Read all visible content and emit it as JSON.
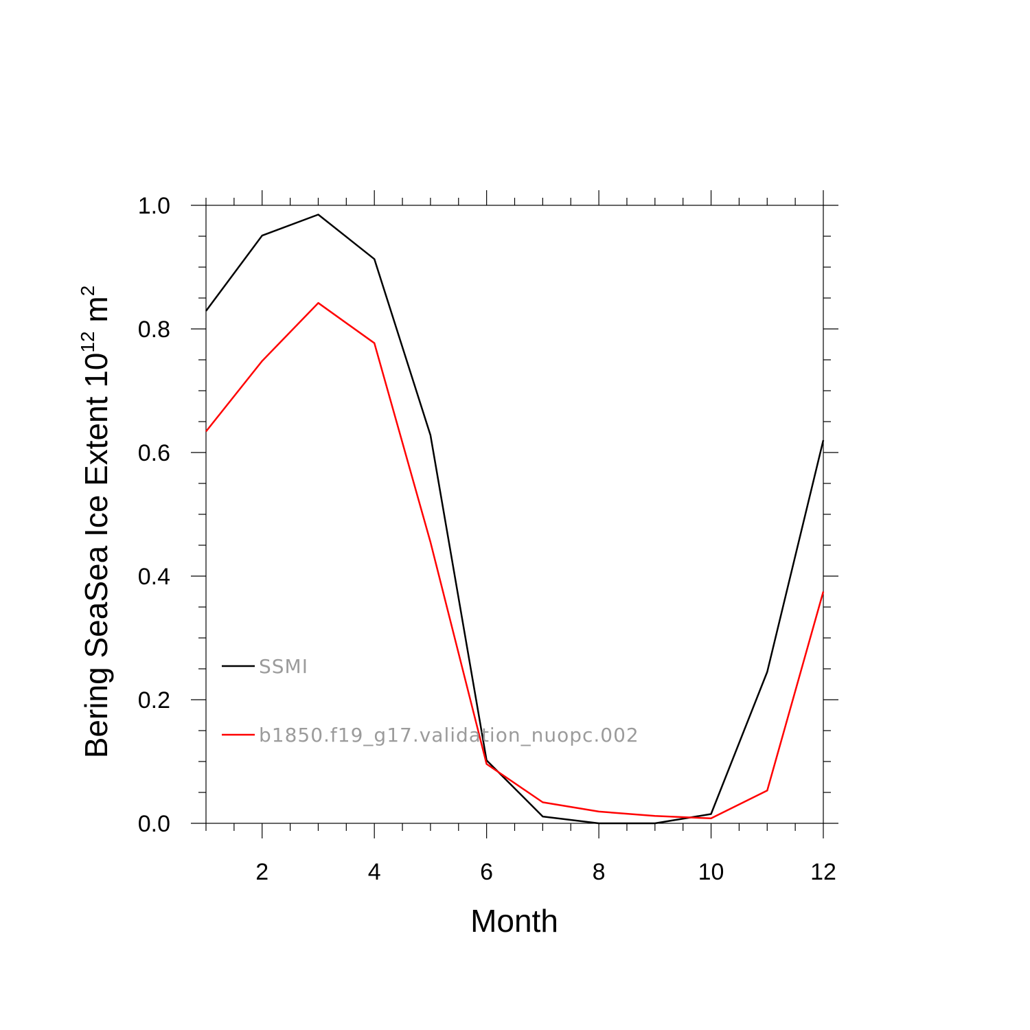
{
  "chart_data": {
    "type": "line",
    "xlabel": "Month",
    "ylabel_main": "Bering SeaSea Ice Extent 10",
    "ylabel_exponent": "12",
    "ylabel_unit": " m",
    "ylabel_unit_exponent": "2",
    "xlim": [
      1,
      12
    ],
    "ylim": [
      0.0,
      1.0
    ],
    "x_ticks": [
      2,
      4,
      6,
      8,
      10,
      12
    ],
    "x_tick_labels": [
      "2",
      "4",
      "6",
      "8",
      "10",
      "12"
    ],
    "y_ticks": [
      0.0,
      0.2,
      0.4,
      0.6,
      0.8,
      1.0
    ],
    "y_tick_labels": [
      "0.0",
      "0.2",
      "0.4",
      "0.6",
      "0.8",
      "1.0"
    ],
    "grid": false,
    "legend_placement": "lower-left",
    "x": [
      1,
      2,
      3,
      4,
      5,
      6,
      7,
      8,
      9,
      10,
      11,
      12
    ],
    "series": [
      {
        "name": "SSMI",
        "color": "#000000",
        "values": [
          0.829,
          0.951,
          0.985,
          0.913,
          0.628,
          0.102,
          0.011,
          0.0,
          0.0,
          0.015,
          0.245,
          0.62
        ]
      },
      {
        "name": "b1850.f19_g17.validation_nuopc.002",
        "color": "#ff0000",
        "values": [
          0.634,
          0.748,
          0.842,
          0.777,
          0.455,
          0.096,
          0.034,
          0.019,
          0.012,
          0.008,
          0.053,
          0.375
        ]
      }
    ]
  }
}
